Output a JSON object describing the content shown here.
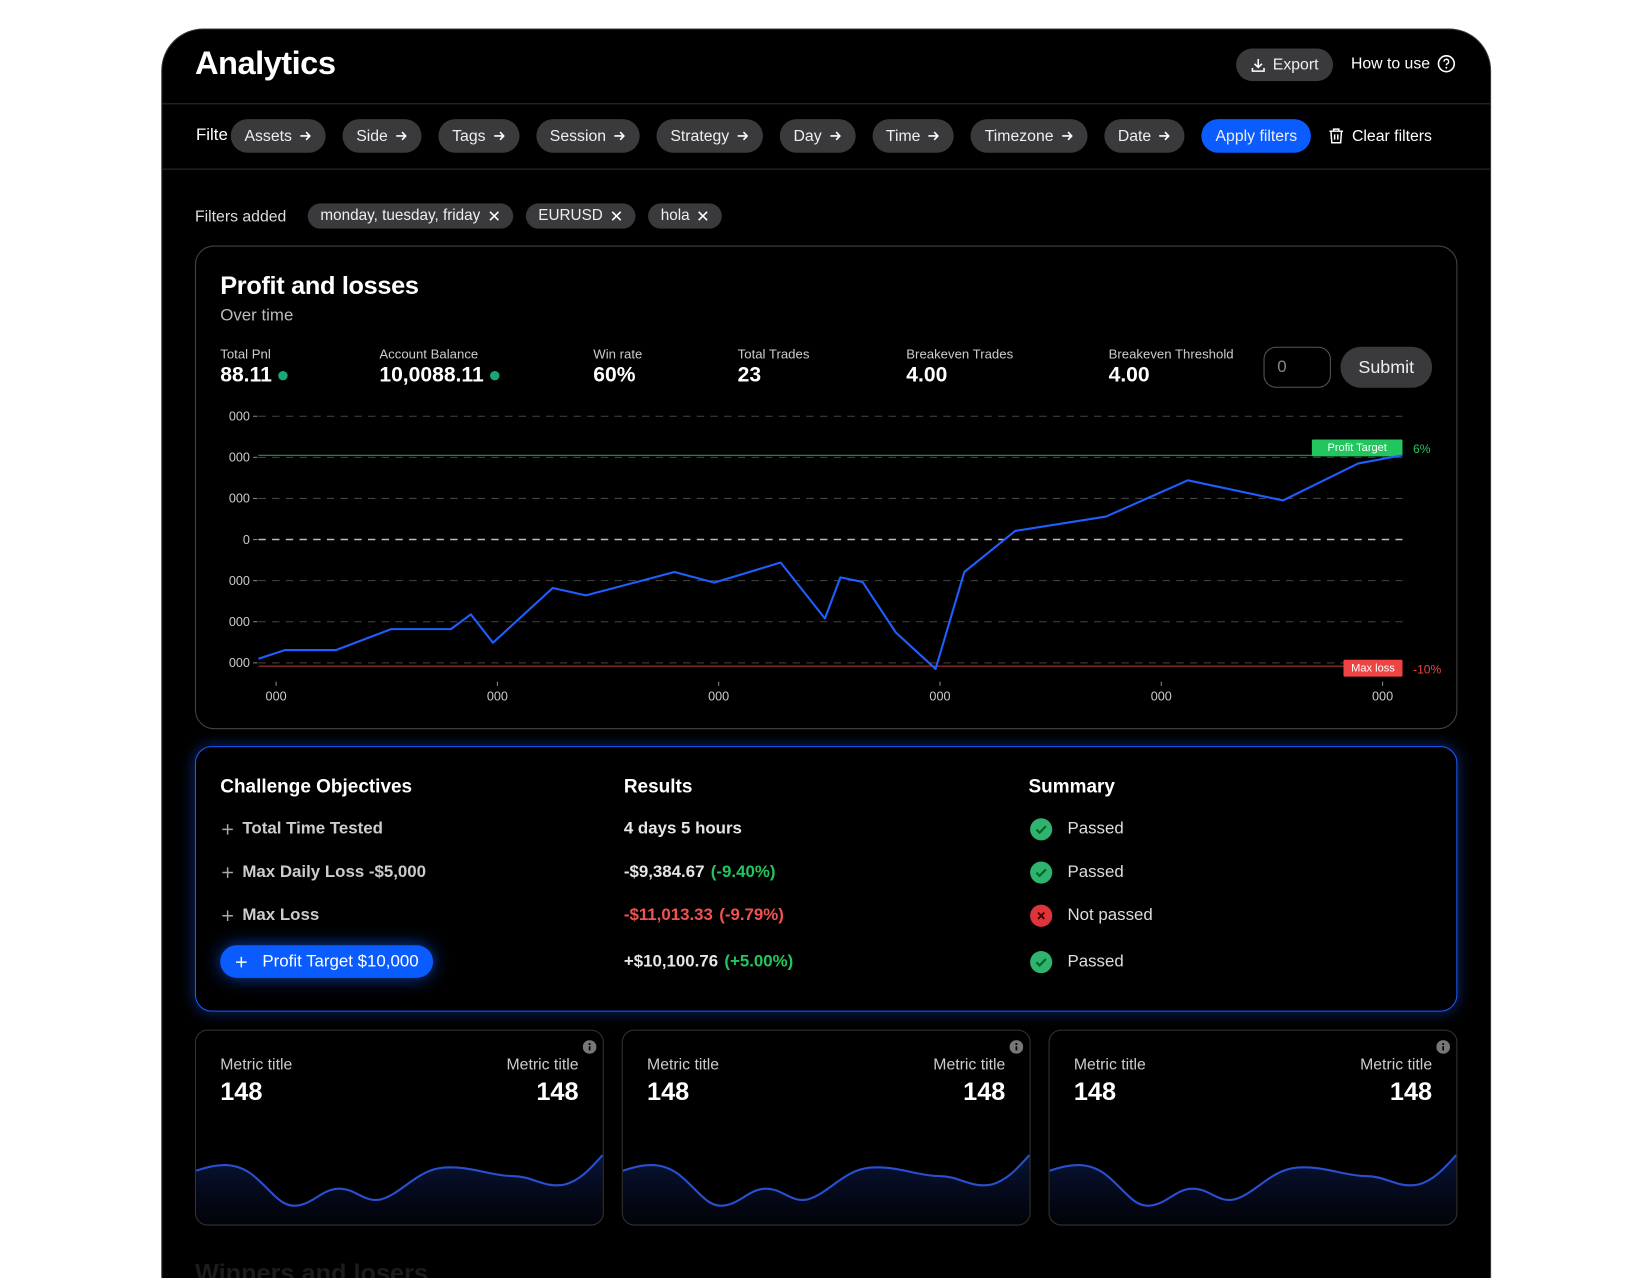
{
  "header": {
    "title": "Analytics",
    "export": "Export",
    "how_to_use": "How to use"
  },
  "filters": {
    "label": "Filte",
    "items": [
      "Assets",
      "Side",
      "Tags",
      "Session",
      "Strategy",
      "Day",
      "Time",
      "Timezone",
      "Date"
    ],
    "apply": "Apply filters",
    "clear": "Clear filters"
  },
  "filters_added": {
    "label": "Filters added",
    "chips": [
      "monday, tuesday, friday",
      "EURUSD",
      "hola"
    ]
  },
  "pnl": {
    "title": "Profit and losses",
    "subtitle": "Over time",
    "stats": [
      {
        "label": "Total Pnl",
        "value": "88.11",
        "dot": true
      },
      {
        "label": "Account Balance",
        "value": "10,0088.11",
        "dot": true
      },
      {
        "label": "Win rate",
        "value": "60%",
        "dot": false
      },
      {
        "label": "Total Trades",
        "value": "23",
        "dot": false
      },
      {
        "label": "Breakeven Trades",
        "value": "4.00",
        "dot": false
      },
      {
        "label": "Breakeven Threshold",
        "value": "4.00",
        "dot": false
      }
    ],
    "threshold_input": "0",
    "submit": "Submit",
    "chart_data": {
      "type": "line",
      "x": [
        -0.08,
        0.04,
        0.27,
        0.52,
        0.79,
        0.88,
        0.98,
        1.25,
        1.4,
        1.8,
        1.98,
        2.28,
        2.48,
        2.55,
        2.65,
        2.8,
        2.98,
        3.11,
        3.34,
        3.75,
        4.12,
        4.55,
        4.89,
        5.09
      ],
      "series": [
        {
          "color": "#1f5eff",
          "values": [
            -2.9,
            -2.69,
            -2.69,
            -2.18,
            -2.18,
            -1.82,
            -2.51,
            -1.18,
            -1.36,
            -0.79,
            -1.05,
            -0.56,
            -1.92,
            -0.92,
            -1.03,
            -2.26,
            -3.15,
            -0.79,
            0.21,
            0.56,
            1.44,
            0.95,
            1.85,
            2.05
          ]
        }
      ],
      "xlim": [
        -0.08,
        5.09
      ],
      "ylim": [
        -3.2,
        3
      ],
      "xticks": [
        {
          "value": 0,
          "label": "000"
        },
        {
          "value": 1,
          "label": "000"
        },
        {
          "value": 2,
          "label": "000"
        },
        {
          "value": 3,
          "label": "000"
        },
        {
          "value": 4,
          "label": "000"
        },
        {
          "value": 5,
          "label": "000"
        }
      ],
      "yticks": [
        {
          "value": -3,
          "label": "000"
        },
        {
          "value": -2,
          "label": "000"
        },
        {
          "value": -1,
          "label": "000"
        },
        0,
        {
          "value": 1,
          "label": "000"
        },
        {
          "value": 2,
          "label": "000"
        },
        {
          "value": 3,
          "label": "000"
        }
      ],
      "grid": true,
      "reference_lines": [
        {
          "name": "Profit Target",
          "y": 2.05,
          "text": "6%",
          "color": "#22c55e"
        },
        {
          "name": "Max loss",
          "y": -3.08,
          "text": "-10%",
          "color": "#ef4444"
        }
      ]
    }
  },
  "challenge": {
    "headers": [
      "Challenge Objectives",
      "Results",
      "Summary"
    ],
    "rows": [
      {
        "objective": "Total Time Tested",
        "result": "4 days 5 hours",
        "result_color": "#e5e5e5",
        "pct": null,
        "pct_color": null,
        "status": "Passed",
        "passed": true,
        "highlight": false
      },
      {
        "objective": "Max Daily Loss -$5,000",
        "result": "-$9,384.67",
        "result_color": "#e5e5e5",
        "pct": "(-9.40%)",
        "pct_color": "#22c55e",
        "status": "Passed",
        "passed": true,
        "highlight": false
      },
      {
        "objective": "Max Loss",
        "result": "-$11,013.33",
        "result_color": "#f05252",
        "pct": "(-9.79%)",
        "pct_color": "#f05252",
        "status": "Not passed",
        "passed": false,
        "highlight": false
      },
      {
        "objective": "Profit Target $10,000",
        "result": "+$10,100.76",
        "result_color": "#e5e5e5",
        "pct": "(+5.00%)",
        "pct_color": "#22c55e",
        "status": "Passed",
        "passed": true,
        "highlight": true
      }
    ]
  },
  "metrics": [
    {
      "left_title": "Metric title",
      "left_value": "148",
      "right_title": "Metric title",
      "right_value": "148"
    },
    {
      "left_title": "Metric title",
      "left_value": "148",
      "right_title": "Metric title",
      "right_value": "148"
    },
    {
      "left_title": "Metric title",
      "left_value": "148",
      "right_title": "Metric title",
      "right_value": "148"
    }
  ],
  "next_section": "Winners and losers"
}
